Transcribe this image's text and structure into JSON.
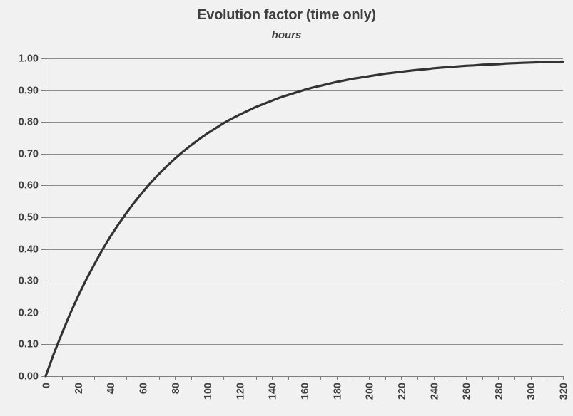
{
  "chart_data": {
    "type": "line",
    "title": "Evolution factor (time only)",
    "subtitle": "hours",
    "xlabel": "",
    "ylabel": "",
    "xlim": [
      0,
      320
    ],
    "ylim": [
      0.0,
      1.0
    ],
    "x_major_tick_step": 20,
    "x_minor_tick_step": 10,
    "y_tick_step": 0.1,
    "x_tick_labels": [
      "0",
      "20",
      "40",
      "60",
      "80",
      "100",
      "120",
      "140",
      "160",
      "180",
      "200",
      "220",
      "240",
      "260",
      "280",
      "300",
      "320"
    ],
    "y_tick_labels": [
      "0.00",
      "0.10",
      "0.20",
      "0.30",
      "0.40",
      "0.50",
      "0.60",
      "0.70",
      "0.80",
      "0.90",
      "1.00"
    ],
    "x_tick_label_rotation_deg": -90,
    "grid": "horizontal-only",
    "legend": "none",
    "series": [
      {
        "name": "evolution factor",
        "x": [
          0,
          5,
          10,
          15,
          20,
          25,
          30,
          35,
          40,
          45,
          50,
          55,
          60,
          65,
          70,
          75,
          80,
          85,
          90,
          95,
          100,
          105,
          110,
          115,
          120,
          125,
          130,
          135,
          140,
          145,
          150,
          155,
          160,
          165,
          170,
          175,
          180,
          185,
          190,
          195,
          200,
          205,
          210,
          215,
          220,
          225,
          230,
          235,
          240,
          245,
          250,
          255,
          260,
          265,
          270,
          275,
          280,
          285,
          290,
          295,
          300,
          305,
          310,
          315,
          320
        ],
        "y": [
          0.0,
          0.07,
          0.134,
          0.195,
          0.251,
          0.303,
          0.351,
          0.397,
          0.439,
          0.478,
          0.514,
          0.548,
          0.579,
          0.609,
          0.636,
          0.661,
          0.685,
          0.707,
          0.727,
          0.746,
          0.764,
          0.78,
          0.796,
          0.81,
          0.823,
          0.835,
          0.847,
          0.857,
          0.867,
          0.877,
          0.885,
          0.893,
          0.901,
          0.908,
          0.914,
          0.92,
          0.926,
          0.931,
          0.936,
          0.94,
          0.944,
          0.948,
          0.952,
          0.955,
          0.958,
          0.961,
          0.964,
          0.966,
          0.969,
          0.971,
          0.973,
          0.975,
          0.977,
          0.978,
          0.98,
          0.981,
          0.982,
          0.984,
          0.985,
          0.986,
          0.987,
          0.988,
          0.989,
          0.989,
          0.99
        ]
      }
    ],
    "colors": {
      "background": "#f1f1f1",
      "text": "#3f3f3f",
      "gridline": "#8c8c8c",
      "axis": "#7d7d7d",
      "series_line": "#333333"
    }
  }
}
